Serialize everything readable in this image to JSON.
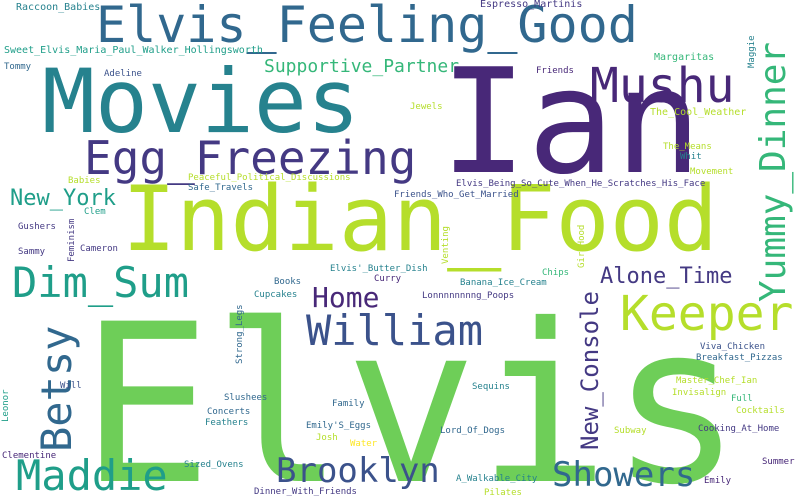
{
  "palette": {
    "dark_purple": "#482878",
    "purple": "#443983",
    "blue": "#3b528b",
    "steel": "#31688e",
    "teal": "#26828e",
    "green_teal": "#1f9e89",
    "green": "#35b779",
    "light_green": "#6ece58",
    "lime": "#b5de2b",
    "yellow": "#fde725"
  },
  "words": [
    "Elvis",
    "Indian_Food",
    "Ian",
    "Movies",
    "Elvis_Feeling_Good",
    "Mushu",
    "Egg_Freezing",
    "Yummy_Dinner",
    "Keeper",
    "William",
    "Dim_Sum",
    "Betsy",
    "Maddie",
    "Brooklyn",
    "Showers",
    "Home",
    "New_Console",
    "Alone_Time",
    "New_York",
    "Supportive_Partner",
    "Raccoon_Babies",
    "Espresso_Martinis",
    "Sweet_Elvis_Maria_Paul_Walker_Hollingsworth",
    "Margaritas",
    "Maggie",
    "Tommy",
    "Adeline",
    "Friends",
    "Jewels",
    "The_Cool_Weather",
    "The_Means",
    "Whit",
    "Movement",
    "Babies",
    "Peaceful_Political_Discussions",
    "Safe_Travels",
    "Elvis_Being_So_Cute_When_He_Scratches_His_Face",
    "Friends_Who_Get_Married",
    "Clem",
    "Gushers",
    "Feminism",
    "Cameron",
    "Sammy",
    "Venting",
    "GirlHood",
    "Elvis'_Butter_Dish",
    "Curry",
    "Chips",
    "Banana_Ice_Cream",
    "Books",
    "Cupcakes",
    "Lonnnnnnnng_Poops",
    "Strong_Legs",
    "Viva_Chicken",
    "Breakfast_Pizzas",
    "Master_Chef_Ian",
    "Invisalign",
    "Full",
    "Cocktails",
    "Leonor",
    "Will",
    "Slushees",
    "Family",
    "Sequins",
    "Concerts",
    "Feathers",
    "Emily'S_Eggs",
    "Josh",
    "Lord_Of_Dogs",
    "Water",
    "Subway",
    "Cooking_At_Home",
    "Clementine",
    "Sized_Ovens",
    "Summer",
    "Dinner_With_Friends",
    "A_Walkable_City",
    "Emily",
    "Pilates"
  ]
}
